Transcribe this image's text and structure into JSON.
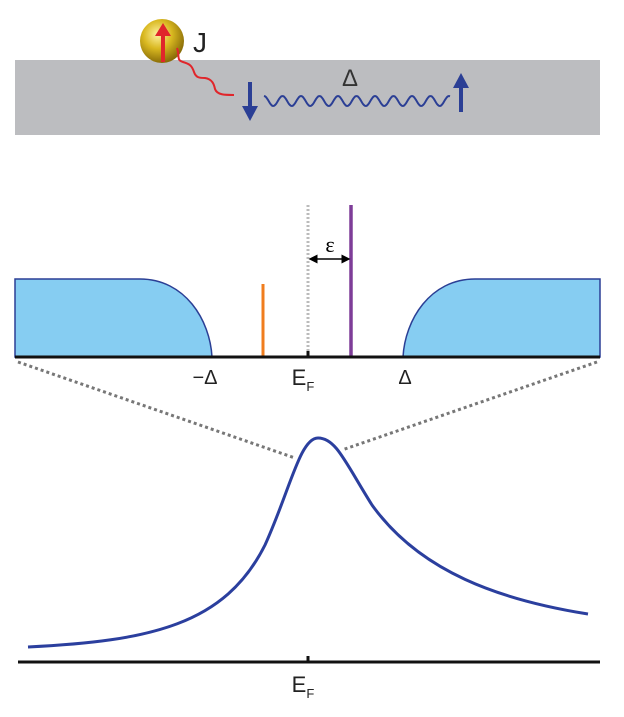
{
  "top_panel": {
    "coupling_label": "J",
    "pairing_label": "Δ"
  },
  "middle_panel": {
    "minus_gap_label": "−Δ",
    "fermi_label_main": "E",
    "fermi_label_sub": "F",
    "gap_label": "Δ",
    "energy_shift_label": "ε"
  },
  "bottom_panel": {
    "fermi_label_main": "E",
    "fermi_label_sub": "F"
  },
  "colors": {
    "band": "#bcbdc0",
    "spin_blue": "#2b3f95",
    "spin_red": "#e0262b",
    "impurity_gold": "#d4b21c",
    "continuum_fill": "#86cdf2",
    "orange_level": "#f07d1e",
    "purple_level": "#7e3d98",
    "resonance_curve": "#2b3f9e"
  }
}
